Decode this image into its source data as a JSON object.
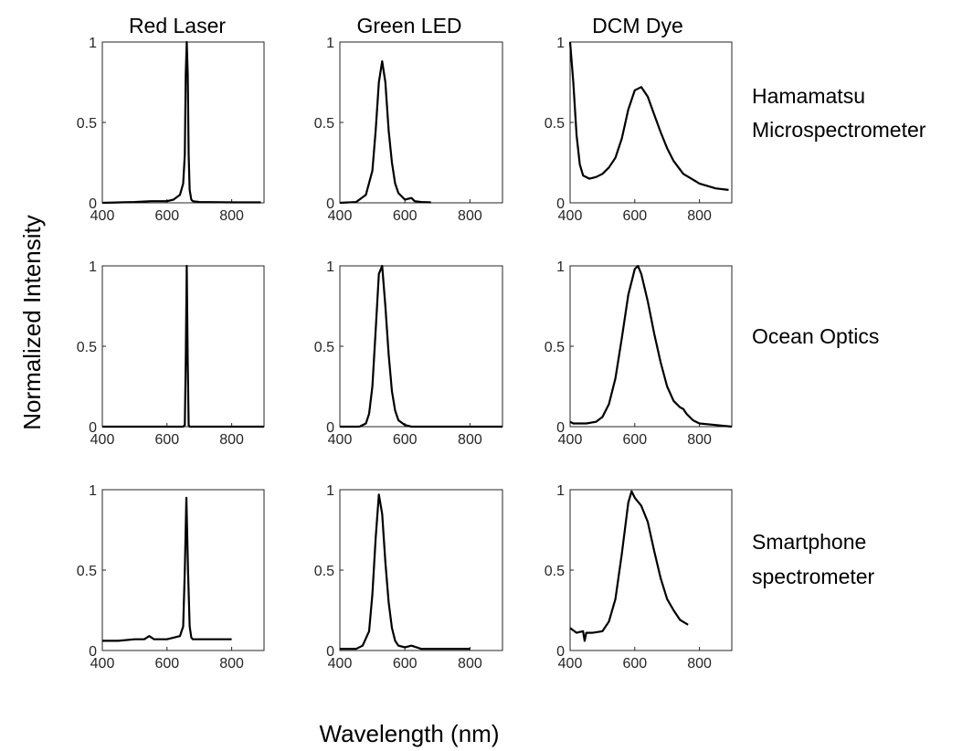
{
  "figure": {
    "column_titles": [
      "Red Laser",
      "Green LED",
      "DCM Dye"
    ],
    "row_labels": [
      [
        "Hamamatsu",
        "Microspectrometer"
      ],
      [
        "Ocean Optics"
      ],
      [
        "Smartphone",
        "spectrometer"
      ]
    ],
    "ylabel": "Normalized Intensity",
    "xlabel": "Wavelength (nm)",
    "line_color": "#000000"
  },
  "chart_data": [
    {
      "type": "line",
      "source": "Hamamatsu Microspectrometer",
      "sample": "Red Laser",
      "xlim": [
        400,
        900
      ],
      "ylim": [
        0,
        1
      ],
      "x_ticks": [
        400,
        600,
        800
      ],
      "y_ticks": [
        0,
        0.5,
        1
      ],
      "x": [
        400,
        500,
        550,
        600,
        620,
        640,
        650,
        655,
        658,
        661,
        664,
        667,
        670,
        675,
        680,
        700,
        800,
        890
      ],
      "y": [
        0.0,
        0.005,
        0.01,
        0.01,
        0.02,
        0.05,
        0.12,
        0.3,
        0.8,
        1.0,
        0.8,
        0.3,
        0.08,
        0.02,
        0.01,
        0.005,
        0.003,
        0.003
      ]
    },
    {
      "type": "line",
      "source": "Hamamatsu Microspectrometer",
      "sample": "Green LED",
      "xlim": [
        400,
        900
      ],
      "ylim": [
        0,
        1
      ],
      "x_ticks": [
        400,
        600,
        800
      ],
      "y_ticks": [
        0,
        0.5,
        1
      ],
      "x": [
        400,
        450,
        480,
        500,
        510,
        520,
        530,
        540,
        550,
        560,
        570,
        580,
        600,
        620,
        630,
        650,
        680
      ],
      "y": [
        0.0,
        0.005,
        0.05,
        0.2,
        0.45,
        0.75,
        0.88,
        0.75,
        0.45,
        0.25,
        0.12,
        0.06,
        0.02,
        0.03,
        0.01,
        0.005,
        0.003
      ]
    },
    {
      "type": "line",
      "source": "Hamamatsu Microspectrometer",
      "sample": "DCM Dye",
      "xlim": [
        400,
        900
      ],
      "ylim": [
        0,
        1
      ],
      "x_ticks": [
        400,
        600,
        800
      ],
      "y_ticks": [
        0,
        0.5,
        1
      ],
      "x": [
        400,
        410,
        420,
        430,
        440,
        460,
        480,
        500,
        520,
        540,
        560,
        580,
        600,
        620,
        640,
        660,
        680,
        700,
        720,
        750,
        800,
        850,
        890
      ],
      "y": [
        1.0,
        0.75,
        0.42,
        0.24,
        0.17,
        0.15,
        0.16,
        0.18,
        0.22,
        0.28,
        0.4,
        0.58,
        0.7,
        0.72,
        0.66,
        0.55,
        0.44,
        0.34,
        0.26,
        0.18,
        0.12,
        0.09,
        0.08
      ]
    },
    {
      "type": "line",
      "source": "Ocean Optics",
      "sample": "Red Laser",
      "xlim": [
        400,
        900
      ],
      "ylim": [
        0,
        1
      ],
      "x_ticks": [
        400,
        600,
        800
      ],
      "y_ticks": [
        0,
        0.5,
        1
      ],
      "x": [
        400,
        600,
        650,
        655,
        658,
        661,
        664,
        667,
        670,
        700,
        900
      ],
      "y": [
        0.0,
        0.0,
        0.0,
        0.01,
        0.4,
        1.0,
        0.4,
        0.01,
        0.0,
        0.0,
        0.0
      ]
    },
    {
      "type": "line",
      "source": "Ocean Optics",
      "sample": "Green LED",
      "xlim": [
        400,
        900
      ],
      "ylim": [
        0,
        1
      ],
      "x_ticks": [
        400,
        600,
        800
      ],
      "y_ticks": [
        0,
        0.5,
        1
      ],
      "x": [
        400,
        460,
        480,
        490,
        500,
        510,
        520,
        530,
        540,
        550,
        560,
        570,
        580,
        600,
        620,
        900
      ],
      "y": [
        0.0,
        0.0,
        0.02,
        0.08,
        0.25,
        0.6,
        0.95,
        1.0,
        0.75,
        0.45,
        0.22,
        0.1,
        0.04,
        0.01,
        0.0,
        0.0
      ]
    },
    {
      "type": "line",
      "source": "Ocean Optics",
      "sample": "DCM Dye",
      "xlim": [
        400,
        900
      ],
      "ylim": [
        0,
        1
      ],
      "x_ticks": [
        400,
        600,
        800
      ],
      "y_ticks": [
        0,
        0.5,
        1
      ],
      "x": [
        400,
        410,
        450,
        480,
        500,
        520,
        540,
        560,
        580,
        600,
        610,
        620,
        640,
        660,
        680,
        700,
        720,
        740,
        750,
        760,
        780,
        800,
        850,
        900
      ],
      "y": [
        0.03,
        0.02,
        0.02,
        0.03,
        0.06,
        0.14,
        0.3,
        0.55,
        0.82,
        0.98,
        1.0,
        0.95,
        0.78,
        0.58,
        0.4,
        0.25,
        0.16,
        0.12,
        0.11,
        0.08,
        0.04,
        0.02,
        0.01,
        0.0
      ]
    },
    {
      "type": "line",
      "source": "Smartphone spectrometer",
      "sample": "Red Laser",
      "xlim": [
        400,
        900
      ],
      "ylim": [
        0,
        1
      ],
      "x_ticks": [
        400,
        600,
        800
      ],
      "y_ticks": [
        0,
        0.5,
        1
      ],
      "x": [
        400,
        450,
        500,
        530,
        545,
        560,
        600,
        620,
        640,
        650,
        655,
        660,
        665,
        670,
        675,
        680,
        700,
        750,
        800
      ],
      "y": [
        0.06,
        0.06,
        0.07,
        0.07,
        0.09,
        0.07,
        0.07,
        0.08,
        0.09,
        0.15,
        0.5,
        0.95,
        0.5,
        0.15,
        0.08,
        0.07,
        0.07,
        0.07,
        0.07
      ]
    },
    {
      "type": "line",
      "source": "Smartphone spectrometer",
      "sample": "Green LED",
      "xlim": [
        400,
        900
      ],
      "ylim": [
        0,
        1
      ],
      "x_ticks": [
        400,
        600,
        800
      ],
      "y_ticks": [
        0,
        0.5,
        1
      ],
      "x": [
        400,
        450,
        470,
        490,
        500,
        510,
        520,
        530,
        540,
        550,
        560,
        570,
        580,
        600,
        620,
        650,
        700,
        800
      ],
      "y": [
        0.01,
        0.01,
        0.03,
        0.12,
        0.35,
        0.7,
        0.97,
        0.85,
        0.55,
        0.3,
        0.14,
        0.06,
        0.03,
        0.02,
        0.03,
        0.01,
        0.01,
        0.01
      ]
    },
    {
      "type": "line",
      "source": "Smartphone spectrometer",
      "sample": "DCM Dye",
      "xlim": [
        400,
        900
      ],
      "ylim": [
        0,
        1
      ],
      "x_ticks": [
        400,
        600,
        800
      ],
      "y_ticks": [
        0,
        0.5,
        1
      ],
      "x": [
        400,
        420,
        440,
        445,
        450,
        470,
        500,
        520,
        540,
        560,
        580,
        590,
        600,
        620,
        640,
        660,
        680,
        700,
        720,
        740,
        765
      ],
      "y": [
        0.14,
        0.11,
        0.12,
        0.06,
        0.11,
        0.11,
        0.12,
        0.18,
        0.32,
        0.6,
        0.92,
        0.99,
        0.95,
        0.9,
        0.8,
        0.62,
        0.45,
        0.32,
        0.25,
        0.19,
        0.16
      ]
    }
  ]
}
